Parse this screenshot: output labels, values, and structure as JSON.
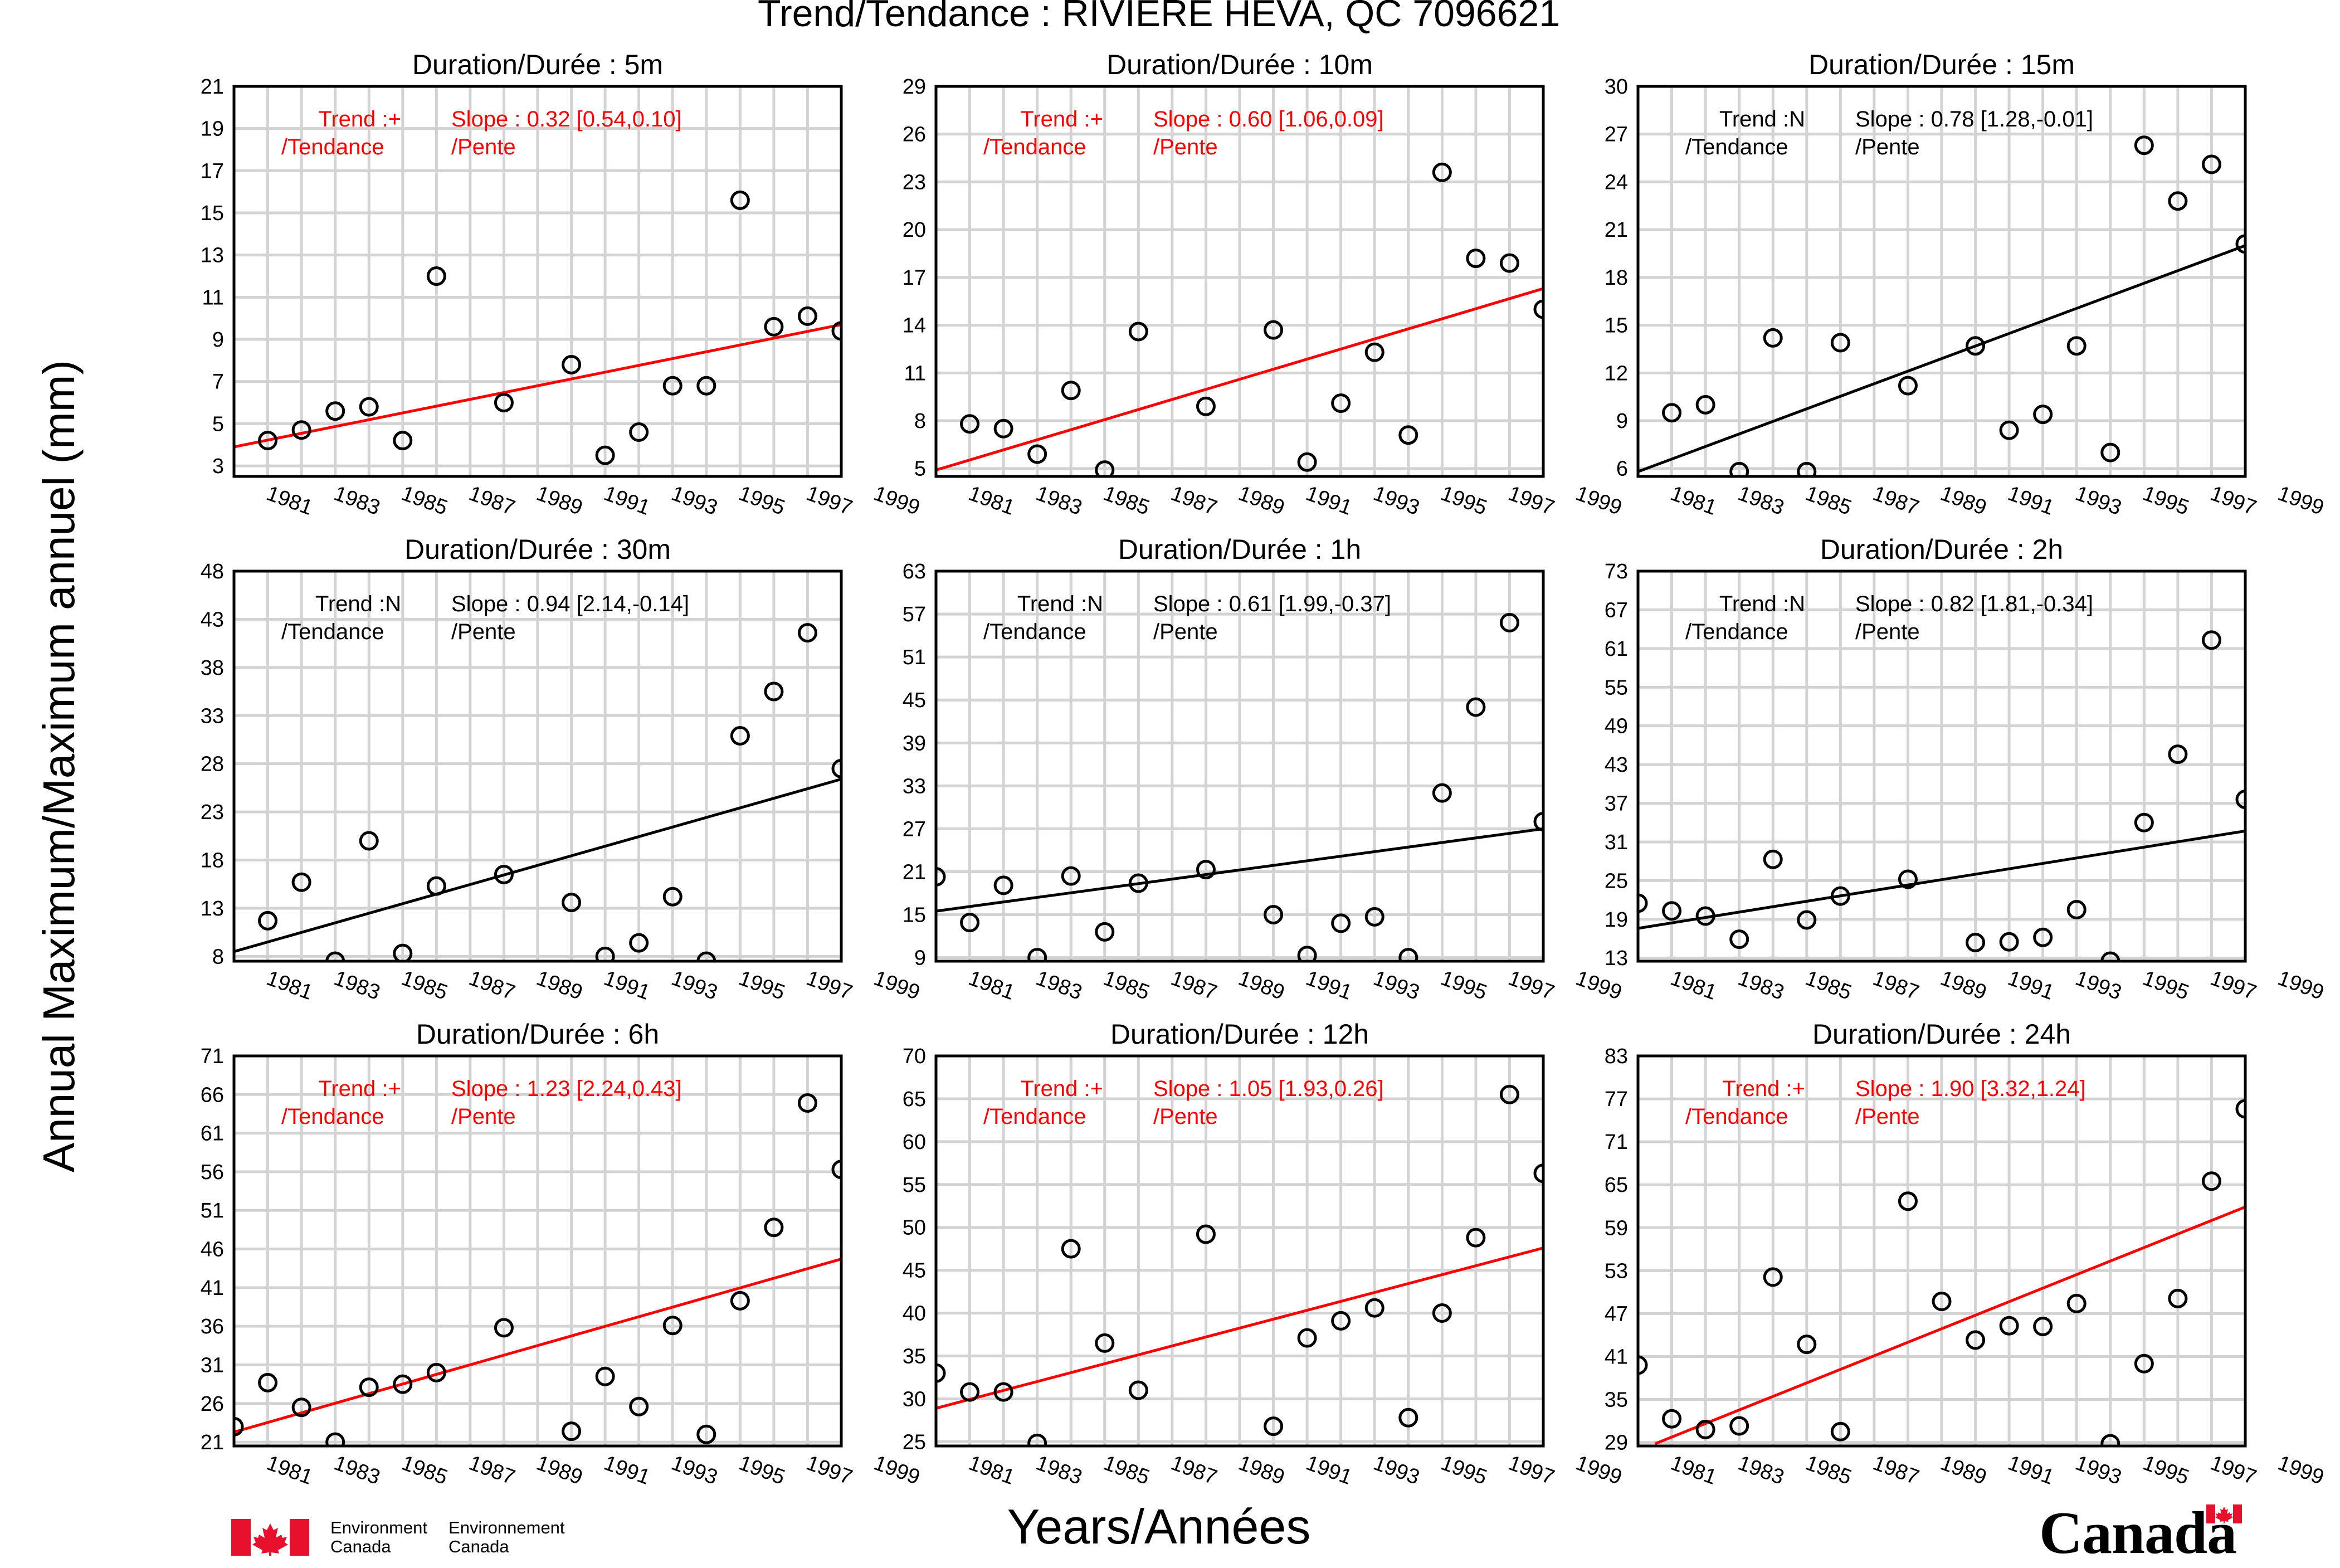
{
  "page": {
    "title": "Trend/Tendance : RIVIERE HEVA, QC  7096621",
    "ylabel": "Annual Maximum/Maximum annuel (mm)",
    "xlabel": "Years/Années"
  },
  "footer": {
    "agency_en": [
      "Environment",
      "Canada"
    ],
    "agency_fr": [
      "Environnement",
      "Canada"
    ],
    "wordmark": "Canada"
  },
  "colors": {
    "significant": "#ff0000",
    "not_significant": "#000000",
    "grid": "#d3d3d3"
  },
  "chart_data": [
    {
      "type": "scatter",
      "title": "Duration/Durée : 5m",
      "x_ticks": [
        1981,
        1983,
        1985,
        1987,
        1989,
        1991,
        1993,
        1995,
        1997,
        1999
      ],
      "xlim": [
        1980,
        1998
      ],
      "ylim": [
        2.5,
        21
      ],
      "y_ticks": [
        3,
        5,
        7,
        9,
        11,
        13,
        15,
        17,
        19,
        21
      ],
      "trend_label": "Trend :+",
      "trend_label_fr": "/Tendance",
      "slope_label": "Slope : 0.32 [0.54,0.10]",
      "slope_label_fr": "/Pente",
      "significant": true,
      "x": [
        1981,
        1982,
        1983,
        1984,
        1985,
        1986,
        1988,
        1990,
        1991,
        1992,
        1993,
        1994,
        1995,
        1996,
        1997,
        1998
      ],
      "y": [
        4.2,
        4.7,
        5.6,
        5.8,
        4.2,
        12.0,
        6.0,
        7.8,
        3.5,
        4.6,
        6.8,
        6.8,
        15.6,
        9.6,
        10.1,
        9.4
      ],
      "trend_line": [
        [
          1980,
          3.9
        ],
        [
          1998,
          9.7
        ]
      ]
    },
    {
      "type": "scatter",
      "title": "Duration/Durée : 10m",
      "x_ticks": [
        1981,
        1983,
        1985,
        1987,
        1989,
        1991,
        1993,
        1995,
        1997,
        1999
      ],
      "xlim": [
        1980,
        1998
      ],
      "ylim": [
        4.5,
        29
      ],
      "y_ticks": [
        5,
        8,
        11,
        14,
        17,
        20,
        23,
        26,
        29
      ],
      "trend_label": "Trend :+",
      "trend_label_fr": "/Tendance",
      "slope_label": "Slope : 0.60 [1.06,0.09]",
      "slope_label_fr": "/Pente",
      "significant": true,
      "x": [
        1981,
        1982,
        1983,
        1984,
        1985,
        1986,
        1988,
        1990,
        1991,
        1992,
        1993,
        1994,
        1995,
        1996,
        1997,
        1998
      ],
      "y": [
        7.8,
        7.5,
        5.9,
        9.9,
        4.9,
        13.6,
        8.9,
        13.7,
        5.4,
        9.1,
        12.3,
        7.1,
        23.6,
        18.2,
        17.9,
        15.0
      ],
      "trend_line": [
        [
          1980,
          4.9
        ],
        [
          1998,
          16.3
        ]
      ]
    },
    {
      "type": "scatter",
      "title": "Duration/Durée : 15m",
      "x_ticks": [
        1981,
        1983,
        1985,
        1987,
        1989,
        1991,
        1993,
        1995,
        1997,
        1999
      ],
      "xlim": [
        1980,
        1998
      ],
      "ylim": [
        5.5,
        30
      ],
      "y_ticks": [
        6,
        9,
        12,
        15,
        18,
        21,
        24,
        27,
        30
      ],
      "trend_label": "Trend :N",
      "trend_label_fr": "/Tendance",
      "slope_label": "Slope : 0.78 [1.28,-0.01]",
      "slope_label_fr": "/Pente",
      "significant": false,
      "x": [
        1981,
        1982,
        1983,
        1984,
        1985,
        1986,
        1988,
        1990,
        1991,
        1992,
        1993,
        1994,
        1995,
        1996,
        1997,
        1998
      ],
      "y": [
        9.5,
        10.0,
        5.8,
        14.2,
        5.8,
        13.9,
        11.2,
        13.7,
        8.4,
        9.4,
        13.7,
        7.0,
        26.3,
        22.8,
        25.1,
        20.1
      ],
      "trend_line": [
        [
          1980,
          5.8
        ],
        [
          1998,
          20.0
        ]
      ]
    },
    {
      "type": "scatter",
      "title": "Duration/Durée : 30m",
      "x_ticks": [
        1981,
        1983,
        1985,
        1987,
        1989,
        1991,
        1993,
        1995,
        1997,
        1999
      ],
      "xlim": [
        1980,
        1998
      ],
      "ylim": [
        7.5,
        48
      ],
      "y_ticks": [
        8,
        13,
        18,
        23,
        28,
        33,
        38,
        43,
        48
      ],
      "trend_label": "Trend :N",
      "trend_label_fr": "/Tendance",
      "slope_label": "Slope : 0.94 [2.14,-0.14]",
      "slope_label_fr": "/Pente",
      "significant": false,
      "x": [
        1981,
        1982,
        1983,
        1984,
        1985,
        1986,
        1988,
        1990,
        1991,
        1992,
        1993,
        1994,
        1995,
        1996,
        1997,
        1998
      ],
      "y": [
        11.7,
        15.7,
        7.5,
        20.0,
        8.3,
        15.3,
        16.5,
        13.6,
        8.0,
        9.4,
        14.2,
        7.5,
        30.9,
        35.5,
        41.6,
        27.5
      ],
      "trend_line": [
        [
          1980,
          8.5
        ],
        [
          1998,
          26.4
        ]
      ]
    },
    {
      "type": "scatter",
      "title": "Duration/Durée : 1h",
      "x_ticks": [
        1981,
        1983,
        1985,
        1987,
        1989,
        1991,
        1993,
        1995,
        1997,
        1999
      ],
      "xlim": [
        1980,
        1998
      ],
      "ylim": [
        8.5,
        63
      ],
      "y_ticks": [
        9,
        15,
        21,
        27,
        33,
        39,
        45,
        51,
        57,
        63
      ],
      "trend_label": "Trend :N",
      "trend_label_fr": "/Tendance",
      "slope_label": "Slope : 0.61 [1.99,-0.37]",
      "slope_label_fr": "/Pente",
      "significant": false,
      "x": [
        1980,
        1981,
        1982,
        1983,
        1984,
        1985,
        1986,
        1988,
        1990,
        1991,
        1992,
        1993,
        1994,
        1995,
        1996,
        1997,
        1998
      ],
      "y": [
        20.3,
        13.9,
        19.1,
        9.0,
        20.4,
        12.6,
        19.4,
        21.3,
        15.0,
        9.3,
        13.8,
        14.7,
        9.0,
        32.0,
        44.0,
        55.8,
        28.0
      ],
      "trend_line": [
        [
          1980,
          15.5
        ],
        [
          1998,
          27.0
        ]
      ]
    },
    {
      "type": "scatter",
      "title": "Duration/Durée : 2h",
      "x_ticks": [
        1981,
        1983,
        1985,
        1987,
        1989,
        1991,
        1993,
        1995,
        1997,
        1999
      ],
      "xlim": [
        1980,
        1998
      ],
      "ylim": [
        12.5,
        73
      ],
      "y_ticks": [
        13,
        19,
        25,
        31,
        37,
        43,
        49,
        55,
        61,
        67,
        73
      ],
      "trend_label": "Trend :N",
      "trend_label_fr": "/Tendance",
      "slope_label": "Slope : 0.82 [1.81,-0.34]",
      "slope_label_fr": "/Pente",
      "significant": false,
      "x": [
        1980,
        1981,
        1982,
        1983,
        1984,
        1985,
        1986,
        1988,
        1990,
        1991,
        1992,
        1993,
        1994,
        1995,
        1996,
        1997,
        1998
      ],
      "y": [
        21.5,
        20.3,
        19.5,
        15.9,
        28.3,
        18.9,
        22.6,
        25.2,
        15.4,
        15.5,
        16.2,
        20.5,
        12.5,
        34.0,
        44.6,
        62.3,
        37.6
      ],
      "trend_line": [
        [
          1980,
          17.6
        ],
        [
          1998,
          32.7
        ]
      ]
    },
    {
      "type": "scatter",
      "title": "Duration/Durée : 6h",
      "x_ticks": [
        1981,
        1983,
        1985,
        1987,
        1989,
        1991,
        1993,
        1995,
        1997,
        1999
      ],
      "xlim": [
        1980,
        1998
      ],
      "ylim": [
        20.5,
        71
      ],
      "y_ticks": [
        21,
        26,
        31,
        36,
        41,
        46,
        51,
        56,
        61,
        66,
        71
      ],
      "trend_label": "Trend :+",
      "trend_label_fr": "/Tendance",
      "slope_label": "Slope : 1.23 [2.24,0.43]",
      "slope_label_fr": "/Pente",
      "significant": true,
      "x": [
        1980,
        1981,
        1982,
        1983,
        1984,
        1985,
        1986,
        1988,
        1990,
        1991,
        1992,
        1993,
        1994,
        1995,
        1996,
        1997,
        1998
      ],
      "y": [
        23.0,
        28.7,
        25.5,
        21.0,
        28.1,
        28.5,
        30.0,
        35.8,
        22.4,
        29.5,
        25.6,
        36.1,
        22.0,
        39.3,
        48.8,
        64.9,
        56.3
      ],
      "trend_line": [
        [
          1980,
          22.3
        ],
        [
          1998,
          44.7
        ]
      ]
    },
    {
      "type": "scatter",
      "title": "Duration/Durée : 12h",
      "x_ticks": [
        1981,
        1983,
        1985,
        1987,
        1989,
        1991,
        1993,
        1995,
        1997,
        1999
      ],
      "xlim": [
        1980,
        1998
      ],
      "ylim": [
        24.5,
        70
      ],
      "y_ticks": [
        25,
        30,
        35,
        40,
        45,
        50,
        55,
        60,
        65,
        70
      ],
      "trend_label": "Trend :+",
      "trend_label_fr": "/Tendance",
      "slope_label": "Slope : 1.05 [1.93,0.26]",
      "slope_label_fr": "/Pente",
      "significant": true,
      "x": [
        1980,
        1981,
        1982,
        1983,
        1984,
        1985,
        1986,
        1988,
        1990,
        1991,
        1992,
        1993,
        1994,
        1995,
        1996,
        1997,
        1998
      ],
      "y": [
        33.0,
        30.8,
        30.8,
        24.8,
        47.5,
        36.5,
        31.0,
        49.2,
        26.8,
        37.1,
        39.1,
        40.6,
        27.8,
        40.0,
        48.8,
        65.5,
        56.3
      ],
      "trend_line": [
        [
          1980,
          28.9
        ],
        [
          1998,
          47.6
        ]
      ]
    },
    {
      "type": "scatter",
      "title": "Duration/Durée : 24h",
      "x_ticks": [
        1981,
        1983,
        1985,
        1987,
        1989,
        1991,
        1993,
        1995,
        1997,
        1999
      ],
      "xlim": [
        1980,
        1998
      ],
      "ylim": [
        28.5,
        83
      ],
      "y_ticks": [
        29,
        35,
        41,
        47,
        53,
        59,
        65,
        71,
        77,
        83
      ],
      "trend_label": "Trend :+",
      "trend_label_fr": "/Tendance",
      "slope_label": "Slope : 1.90 [3.32,1.24]",
      "slope_label_fr": "/Pente",
      "significant": true,
      "x": [
        1980,
        1981,
        1982,
        1983,
        1984,
        1985,
        1986,
        1988,
        1989,
        1990,
        1991,
        1992,
        1993,
        1994,
        1995,
        1996,
        1997,
        1998
      ],
      "y": [
        39.8,
        32.3,
        30.8,
        31.3,
        52.1,
        42.7,
        30.5,
        62.7,
        48.7,
        43.3,
        45.3,
        45.2,
        48.4,
        28.8,
        40.0,
        49.1,
        65.5,
        75.6
      ],
      "trend_line": [
        [
          1980.5,
          28.8
        ],
        [
          1998,
          61.9
        ]
      ]
    }
  ]
}
